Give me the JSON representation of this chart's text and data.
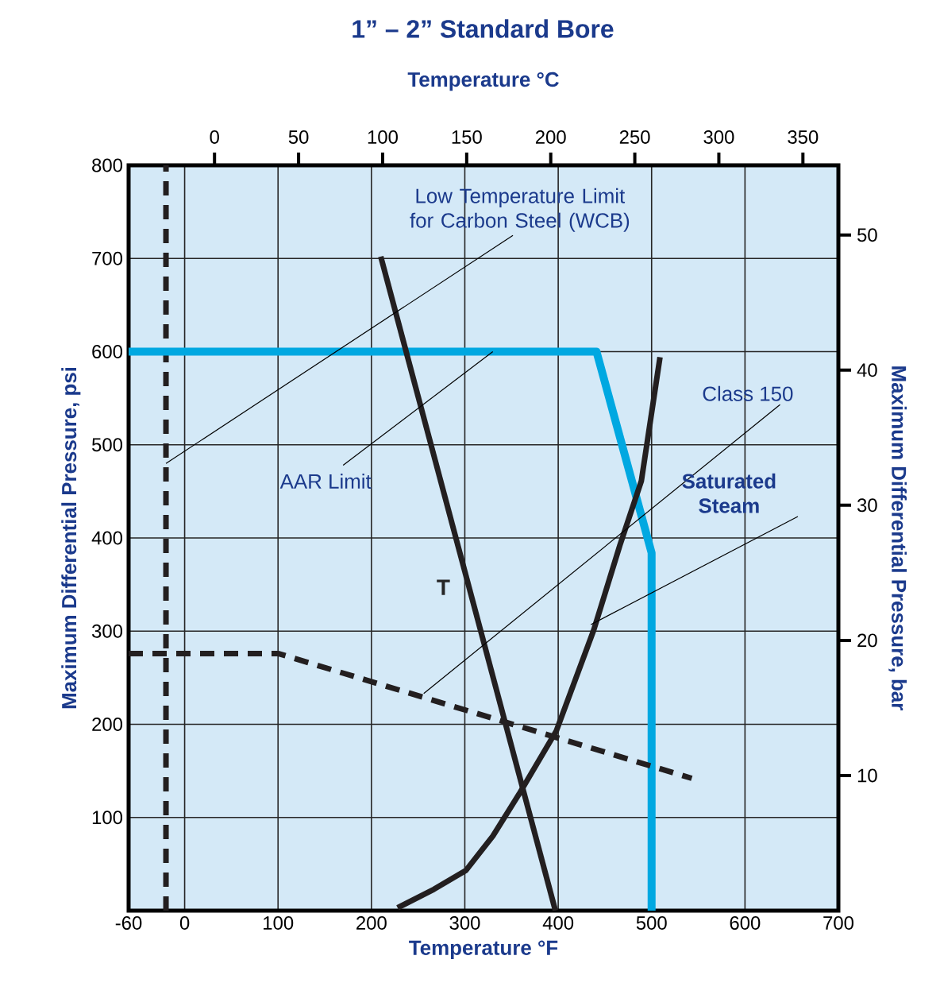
{
  "chart_data": {
    "type": "line",
    "title": "1” – 2” Standard Bore",
    "xlabel": "Temperature °F",
    "ylabel": "Maximum Differential Pressure, psi",
    "y2label": "Maximum Differential Pressure, bar",
    "x2label": "Temperature °C",
    "xlim": [
      -60,
      700
    ],
    "xticks": [
      -60,
      0,
      100,
      200,
      300,
      400,
      500,
      600,
      700
    ],
    "ylim": [
      0,
      800
    ],
    "yticks": [
      100,
      200,
      300,
      400,
      500,
      600,
      700,
      800
    ],
    "x2lim": [
      -51.1,
      371.1
    ],
    "x2ticks": [
      0,
      50,
      100,
      150,
      200,
      250,
      300,
      350
    ],
    "y2lim": [
      0,
      55.16
    ],
    "y2ticks": [
      10,
      20,
      30,
      40,
      50
    ],
    "grid": true,
    "marker": "none",
    "series": [
      {
        "color": "#00a8e1",
        "x": [
          -60,
          441,
          500,
          500
        ],
        "values": [
          600,
          600,
          384,
          0
        ]
      },
      {
        "color": "#231f20",
        "line_style": "dashed",
        "x": [
          -60,
          100,
          543
        ],
        "values": [
          276,
          276,
          142
        ]
      },
      {
        "color": "#231f20",
        "x": [
          210,
          397
        ],
        "values": [
          702,
          0
        ]
      },
      {
        "color": "#231f20",
        "x": [
          228,
          267,
          301,
          330,
          358,
          398,
          438,
          466,
          489,
          509
        ],
        "values": [
          3,
          23,
          43,
          80,
          125,
          193,
          301,
          392,
          461,
          594
        ]
      }
    ],
    "ref_lines": [
      {
        "axis": "x",
        "value": -20,
        "label": "Low Temperature Limit for Carbon Steel (WCB)",
        "color": "#231f20",
        "line_style": "dashed"
      }
    ],
    "annotations": [
      {
        "text": "AAR Limit",
        "x": 330,
        "y": 600
      },
      {
        "text": "Class 150",
        "x": 256,
        "y": 233
      },
      {
        "text": "Saturated Steam",
        "x": 435,
        "y": 307
      },
      "T"
    ]
  }
}
